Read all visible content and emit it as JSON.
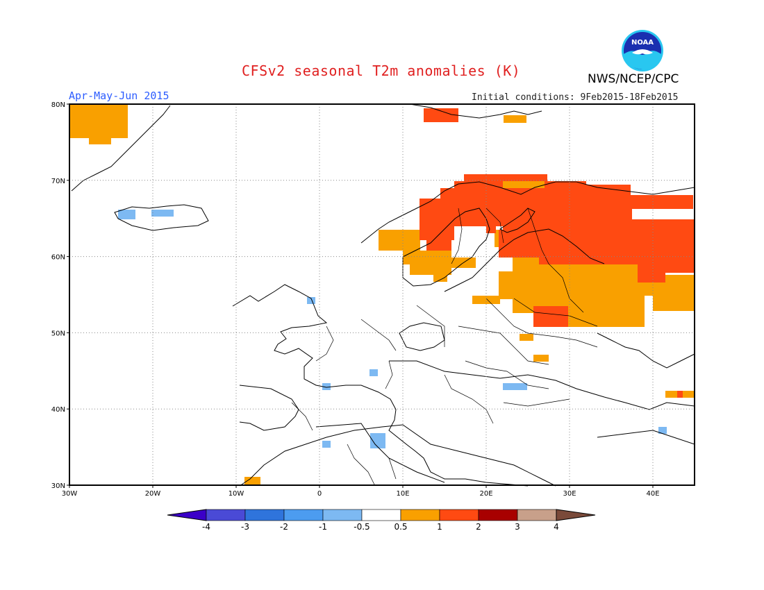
{
  "title": "CFSv2 seasonal T2m anomalies (K)",
  "season": "Apr-May-Jun 2015",
  "initial_conditions": "Initial conditions: 9Feb2015-18Feb2015",
  "agency": "NWS/NCEP/CPC",
  "logo_text": "NOAA",
  "logo_icon": "noaa-logo",
  "map": {
    "lon_range": [
      -30,
      45
    ],
    "lat_range": [
      30,
      80
    ],
    "lon_ticks": [
      {
        "value": -30,
        "label": "30W"
      },
      {
        "value": -20,
        "label": "20W"
      },
      {
        "value": -10,
        "label": "10W"
      },
      {
        "value": 0,
        "label": "0"
      },
      {
        "value": 10,
        "label": "10E"
      },
      {
        "value": 20,
        "label": "20E"
      },
      {
        "value": 30,
        "label": "30E"
      },
      {
        "value": 40,
        "label": "40E"
      }
    ],
    "lat_ticks": [
      {
        "value": 80,
        "label": "80N"
      },
      {
        "value": 70,
        "label": "70N"
      },
      {
        "value": 60,
        "label": "60N"
      },
      {
        "value": 50,
        "label": "50N"
      },
      {
        "value": 40,
        "label": "40N"
      },
      {
        "value": 30,
        "label": "30N"
      }
    ],
    "gridlines": true
  },
  "colorbar": {
    "labels": [
      "-4",
      "-3",
      "-2",
      "-1",
      "-0.5",
      "0.5",
      "1",
      "2",
      "3",
      "4"
    ],
    "colors": [
      "#3b00c8",
      "#4a4ad6",
      "#2f74dc",
      "#4c9cf0",
      "#7db9f2",
      "#ffffff",
      "#f9a000",
      "#ff4a12",
      "#a80000",
      "#c8a08a",
      "#7a4a3a"
    ]
  },
  "anomaly_legend": {
    "light_blue": "#7db9f2",
    "orange": "#f9a000",
    "red": "#ff4a12"
  }
}
